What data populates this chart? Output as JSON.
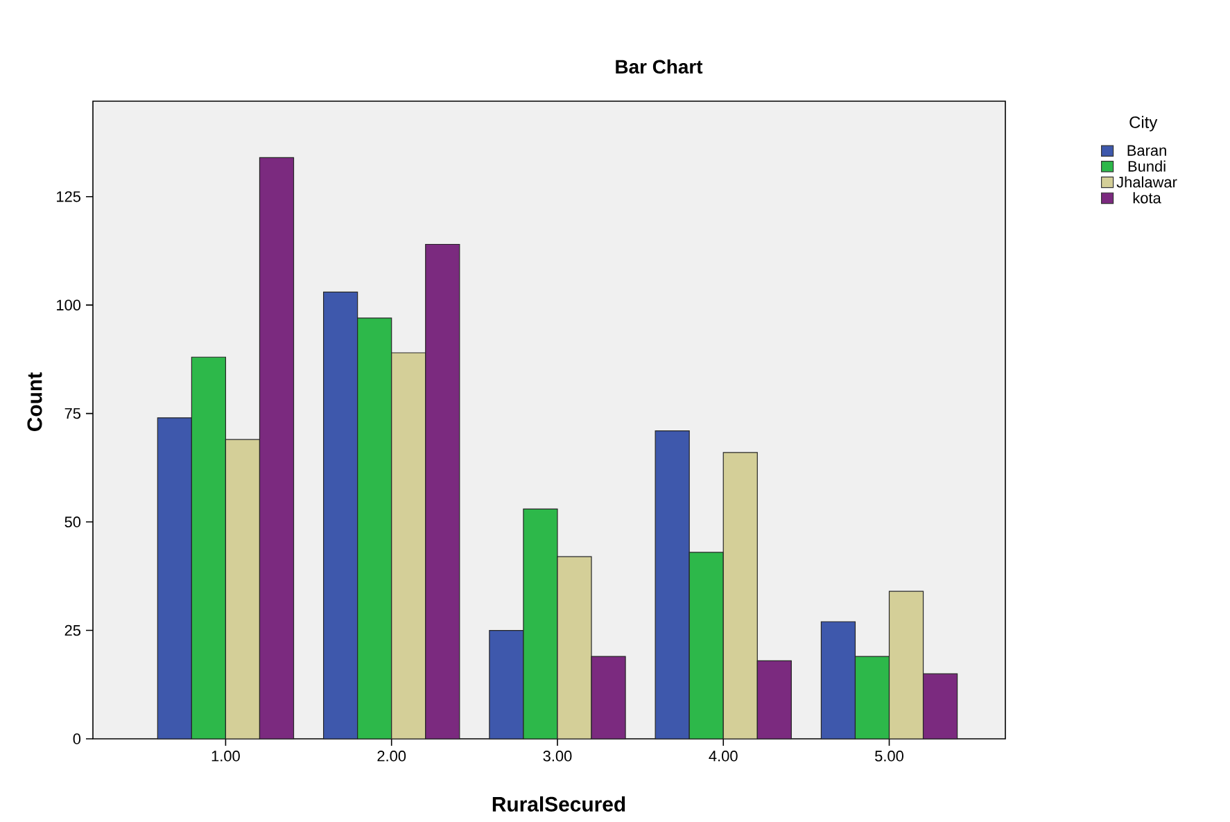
{
  "chart_data": {
    "type": "bar",
    "title": "Bar Chart",
    "xlabel": "RuralSecured",
    "ylabel": "Count",
    "legend_title": "City",
    "legend": "right",
    "categories": [
      "1.00",
      "2.00",
      "3.00",
      "4.00",
      "5.00"
    ],
    "ylim": [
      0,
      147
    ],
    "yticks": [
      0,
      25,
      50,
      75,
      100,
      125
    ],
    "series": [
      {
        "name": "Baran",
        "color": "#3e58ac",
        "values": [
          74,
          103,
          25,
          71,
          27
        ]
      },
      {
        "name": "Bundi",
        "color": "#2db84a",
        "values": [
          88,
          97,
          53,
          43,
          19
        ]
      },
      {
        "name": "Jhalawar",
        "color": "#d4cf98",
        "values": [
          69,
          89,
          42,
          66,
          34
        ]
      },
      {
        "name": "kota",
        "color": "#7b2a7f",
        "values": [
          134,
          114,
          19,
          18,
          15
        ]
      }
    ]
  }
}
